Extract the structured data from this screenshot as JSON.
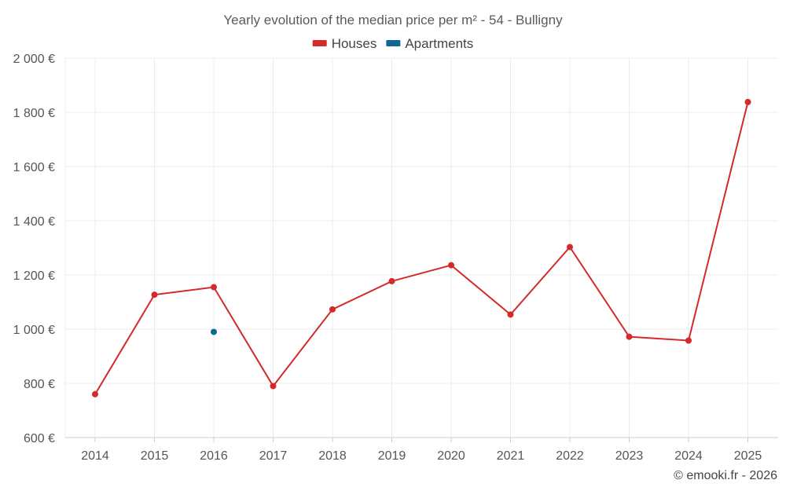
{
  "chart_data": {
    "type": "line",
    "title": "Yearly evolution of the median price per m² - 54 - Bulligny",
    "categories": [
      "2014",
      "2015",
      "2016",
      "2017",
      "2018",
      "2019",
      "2020",
      "2021",
      "2022",
      "2023",
      "2024",
      "2025"
    ],
    "series": [
      {
        "name": "Houses",
        "color": "#d42a2a",
        "values": [
          760,
          1127,
          1155,
          790,
          1073,
          1177,
          1236,
          1054,
          1303,
          972,
          958,
          1838
        ]
      },
      {
        "name": "Apartments",
        "color": "#0f6697",
        "values": [
          null,
          null,
          990,
          null,
          null,
          null,
          null,
          null,
          null,
          null,
          null,
          null
        ]
      }
    ],
    "ylim": [
      600,
      2000
    ],
    "yticks": [
      600,
      800,
      1000,
      1200,
      1400,
      1600,
      1800,
      2000
    ],
    "ytick_labels": [
      "600 €",
      "800 €",
      "1 000 €",
      "1 200 €",
      "1 400 €",
      "1 600 €",
      "1 800 €",
      "2 000 €"
    ],
    "grid": true,
    "legend_position": "top-center",
    "xlabel": "",
    "ylabel": ""
  },
  "credit": "© emooki.fr - 2026"
}
